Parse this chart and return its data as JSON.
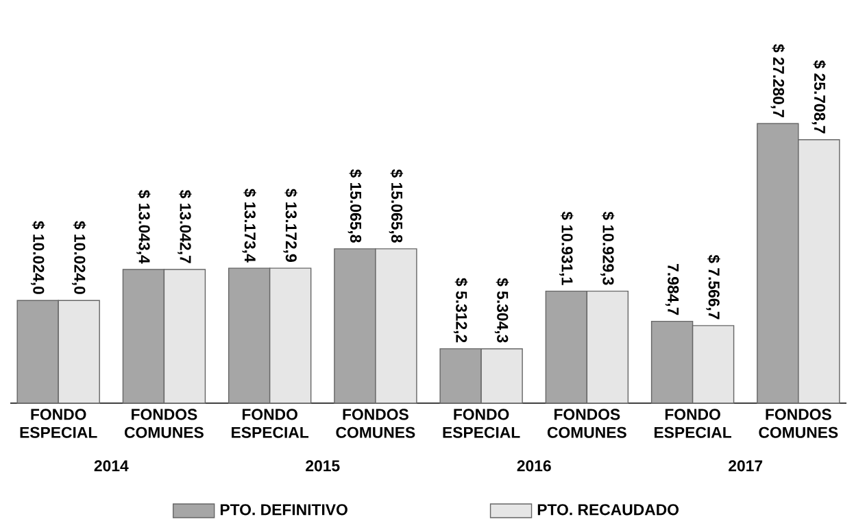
{
  "chart_data": {
    "type": "bar",
    "categories": [
      "FONDO ESPECIAL",
      "FONDOS COMUNES",
      "FONDO ESPECIAL",
      "FONDOS COMUNES",
      "FONDO ESPECIAL",
      "FONDOS COMUNES",
      "FONDO ESPECIAL",
      "FONDOS COMUNES"
    ],
    "series": [
      {
        "name": "PTO. DEFINITIVO",
        "color": "#a6a6a6",
        "values": [
          10024.0,
          13043.4,
          13173.4,
          15065.8,
          5312.2,
          10931.1,
          7984.7,
          27280.7
        ],
        "value_labels": [
          "$ 10.024,0",
          "$ 13.043,4",
          "$ 13.173,4",
          "$ 15.065,8",
          "$ 5.312,2",
          "$ 10.931,1",
          "7.984,7",
          "$ 27.280,7"
        ]
      },
      {
        "name": "PTO. RECAUDADO",
        "color": "#e6e6e6",
        "values": [
          10024.0,
          13042.7,
          13172.9,
          15065.8,
          5304.3,
          10929.3,
          7566.7,
          25708.7
        ],
        "value_labels": [
          "$ 10.024,0",
          "$ 13.042,7",
          "$ 13.172,9",
          "$ 15.065,8",
          "$ 5.304,3",
          "$ 10.929,3",
          "$ 7.566,7",
          "$ 25.708,7"
        ]
      }
    ],
    "annotations": [
      "2014",
      "2015",
      "2016",
      "2017"
    ],
    "legend": "bottom"
  }
}
